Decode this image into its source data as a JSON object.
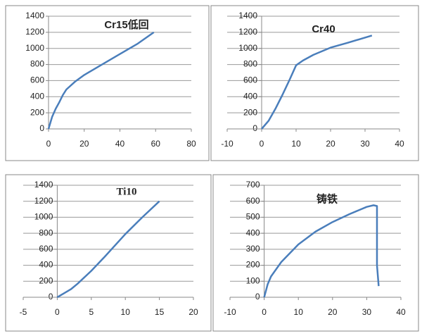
{
  "chart_data": [
    {
      "type": "line",
      "title": "Cr15低回",
      "x": [
        0,
        2,
        4,
        6,
        8,
        10,
        15,
        20,
        30,
        40,
        50,
        59
      ],
      "values": [
        0,
        150,
        250,
        330,
        420,
        490,
        590,
        670,
        800,
        930,
        1060,
        1200
      ],
      "color": "#4a7ebb",
      "xlim": [
        0,
        80
      ],
      "xticks": [
        0,
        20,
        40,
        60,
        80
      ],
      "ylim": [
        0,
        1400
      ],
      "yticks": [
        0,
        200,
        400,
        600,
        800,
        1000,
        1200,
        1400
      ],
      "grid": true
    },
    {
      "type": "line",
      "title": "Cr40",
      "x": [
        0,
        2,
        4,
        6,
        8,
        10,
        12,
        15,
        20,
        25,
        32
      ],
      "values": [
        0,
        100,
        250,
        420,
        600,
        790,
        850,
        920,
        1010,
        1070,
        1160
      ],
      "color": "#4a7ebb",
      "xlim": [
        -10,
        40
      ],
      "xticks": [
        -10,
        0,
        10,
        20,
        30,
        40
      ],
      "ylim": [
        0,
        1400
      ],
      "yticks": [
        0,
        200,
        400,
        600,
        800,
        1000,
        1200,
        1400
      ],
      "grid": true
    },
    {
      "type": "line",
      "title": "Ti10",
      "x": [
        0,
        1,
        2,
        3,
        5,
        7,
        10,
        12.5,
        15
      ],
      "values": [
        0,
        50,
        100,
        170,
        330,
        510,
        790,
        1000,
        1200
      ],
      "color": "#4a7ebb",
      "xlim": [
        -5,
        20
      ],
      "xticks": [
        -5,
        0,
        5,
        10,
        15,
        20
      ],
      "ylim": [
        0,
        1400
      ],
      "yticks": [
        0,
        200,
        400,
        600,
        800,
        1000,
        1200,
        1400
      ],
      "grid": true
    },
    {
      "type": "line",
      "title": "铸铁",
      "x": [
        0,
        1,
        2,
        5,
        10,
        15,
        20,
        25,
        30,
        32,
        33,
        33,
        33.5
      ],
      "values": [
        0,
        80,
        130,
        220,
        330,
        410,
        470,
        520,
        565,
        575,
        570,
        200,
        70
      ],
      "color": "#4a7ebb",
      "xlim": [
        -10,
        40
      ],
      "xticks": [
        -10,
        0,
        10,
        20,
        30,
        40
      ],
      "ylim": [
        0,
        700
      ],
      "yticks": [
        0,
        100,
        200,
        300,
        400,
        500,
        600,
        700
      ],
      "grid": true
    }
  ]
}
